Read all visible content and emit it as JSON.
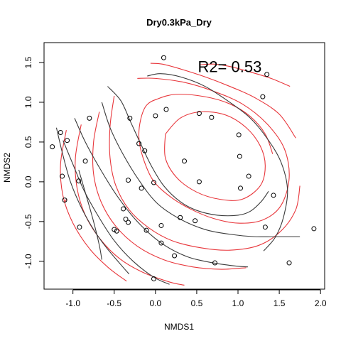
{
  "chart_data": {
    "type": "scatter",
    "title": "Dry0.3kPa_Dry",
    "xlabel": "NMDS1",
    "ylabel": "NMDS2",
    "xlim": [
      -1.35,
      2.05
    ],
    "ylim": [
      -1.35,
      1.75
    ],
    "xticks": [
      "-1.0",
      "-0.5",
      "0.0",
      "0.5",
      "1.0",
      "1.5",
      "2.0"
    ],
    "xtick_values": [
      -1.0,
      -0.5,
      0.0,
      0.5,
      1.0,
      1.5,
      2.0
    ],
    "yticks": [
      "-1.0",
      "-0.5",
      "0.0",
      "0.5",
      "1.0",
      "1.5"
    ],
    "ytick_values": [
      -1.0,
      -0.5,
      0.0,
      0.5,
      1.0,
      1.5
    ],
    "annotation": "R2= 0.53",
    "annotation_pos": [
      0.9,
      1.45
    ],
    "points": [
      [
        -1.25,
        0.44
      ],
      [
        -1.15,
        0.62
      ],
      [
        -1.13,
        0.07
      ],
      [
        -1.07,
        0.52
      ],
      [
        -1.1,
        -0.23
      ],
      [
        -0.93,
        0.01
      ],
      [
        -0.92,
        -0.57
      ],
      [
        -0.85,
        0.26
      ],
      [
        -0.8,
        0.8
      ],
      [
        -0.5,
        -0.6
      ],
      [
        -0.47,
        -0.62
      ],
      [
        -0.39,
        -0.34
      ],
      [
        -0.36,
        -0.47
      ],
      [
        -0.33,
        -0.51
      ],
      [
        -0.33,
        0.02
      ],
      [
        -0.31,
        0.8
      ],
      [
        -0.2,
        0.48
      ],
      [
        -0.17,
        -0.08
      ],
      [
        -0.13,
        0.39
      ],
      [
        -0.11,
        -0.61
      ],
      [
        -0.02,
        -0.01
      ],
      [
        -0.02,
        -1.22
      ],
      [
        0.0,
        0.83
      ],
      [
        0.07,
        -0.55
      ],
      [
        0.07,
        -0.77
      ],
      [
        0.1,
        1.56
      ],
      [
        0.13,
        0.91
      ],
      [
        0.23,
        -0.93
      ],
      [
        0.3,
        -0.45
      ],
      [
        0.35,
        0.26
      ],
      [
        0.48,
        -0.49
      ],
      [
        0.53,
        0.0
      ],
      [
        0.53,
        0.86
      ],
      [
        0.68,
        0.81
      ],
      [
        0.72,
        -1.02
      ],
      [
        1.01,
        0.59
      ],
      [
        1.02,
        0.32
      ],
      [
        1.03,
        -0.08
      ],
      [
        1.13,
        0.07
      ],
      [
        1.3,
        1.07
      ],
      [
        1.33,
        -0.57
      ],
      [
        1.35,
        1.35
      ],
      [
        1.43,
        -0.17
      ],
      [
        1.62,
        -1.02
      ],
      [
        1.92,
        -0.59
      ]
    ],
    "series": [
      {
        "color": "#e8363b",
        "lines": [
          [
            [
              0.53,
              1.47
            ],
            [
              0.7,
              1.48
            ],
            [
              0.9,
              1.45
            ],
            [
              1.15,
              1.38
            ],
            [
              1.4,
              1.3
            ],
            [
              1.63,
              1.2
            ]
          ],
          [
            [
              -0.06,
              1.49
            ],
            [
              0.08,
              1.48
            ],
            [
              0.3,
              1.42
            ],
            [
              0.6,
              1.32
            ],
            [
              0.9,
              1.2
            ],
            [
              1.2,
              1.06
            ],
            [
              1.5,
              0.85
            ],
            [
              1.7,
              0.55
            ]
          ],
          [
            [
              -0.22,
              1.3
            ],
            [
              0.0,
              1.3
            ],
            [
              0.35,
              1.25
            ],
            [
              0.7,
              1.14
            ],
            [
              1.05,
              0.98
            ],
            [
              1.35,
              0.73
            ],
            [
              1.56,
              0.42
            ],
            [
              1.62,
              0.05
            ],
            [
              1.52,
              -0.3
            ],
            [
              1.3,
              -0.48
            ],
            [
              1.0,
              -0.52
            ],
            [
              0.7,
              -0.46
            ],
            [
              0.42,
              -0.34
            ],
            [
              0.17,
              -0.18
            ],
            [
              -0.03,
              0.02
            ],
            [
              -0.15,
              0.3
            ],
            [
              -0.2,
              0.55
            ],
            [
              -0.18,
              0.78
            ],
            [
              -0.11,
              0.96
            ],
            [
              0.02,
              1.04
            ],
            [
              0.25,
              1.1
            ],
            [
              0.6,
              1.07
            ],
            [
              0.9,
              0.98
            ],
            [
              1.15,
              0.82
            ],
            [
              1.33,
              0.6
            ],
            [
              1.42,
              0.35
            ]
          ],
          [
            [
              0.12,
              0.6
            ],
            [
              0.3,
              0.8
            ],
            [
              0.55,
              0.88
            ],
            [
              0.85,
              0.84
            ],
            [
              1.1,
              0.68
            ],
            [
              1.27,
              0.45
            ],
            [
              1.33,
              0.2
            ],
            [
              1.27,
              -0.05
            ],
            [
              1.05,
              -0.22
            ],
            [
              0.78,
              -0.22
            ],
            [
              0.5,
              -0.13
            ],
            [
              0.26,
              0.05
            ],
            [
              0.12,
              0.3
            ],
            [
              0.12,
              0.6
            ]
          ],
          [
            [
              -0.5,
              1.08
            ],
            [
              -0.55,
              0.7
            ],
            [
              -0.55,
              0.3
            ],
            [
              -0.48,
              -0.05
            ],
            [
              -0.32,
              -0.35
            ],
            [
              -0.08,
              -0.58
            ],
            [
              0.2,
              -0.74
            ],
            [
              0.55,
              -0.83
            ],
            [
              0.9,
              -0.86
            ],
            [
              1.25,
              -0.8
            ],
            [
              1.52,
              -0.62
            ],
            [
              1.7,
              -0.35
            ],
            [
              1.75,
              -0.05
            ]
          ],
          [
            [
              -0.68,
              0.88
            ],
            [
              -0.75,
              0.5
            ],
            [
              -0.75,
              0.1
            ],
            [
              -0.66,
              -0.25
            ],
            [
              -0.48,
              -0.56
            ],
            [
              -0.22,
              -0.81
            ],
            [
              0.1,
              -0.98
            ],
            [
              0.45,
              -1.07
            ],
            [
              0.8,
              -1.1
            ],
            [
              1.1,
              -1.08
            ]
          ],
          [
            [
              -0.9,
              0.72
            ],
            [
              -0.97,
              0.3
            ],
            [
              -0.95,
              -0.08
            ],
            [
              -0.85,
              -0.42
            ],
            [
              -0.67,
              -0.72
            ],
            [
              -0.43,
              -0.97
            ],
            [
              -0.15,
              -1.14
            ],
            [
              0.17,
              -1.26
            ],
            [
              0.35,
              -1.3
            ]
          ],
          [
            [
              -1.08,
              0.65
            ],
            [
              -1.15,
              0.22
            ],
            [
              -1.12,
              -0.18
            ],
            [
              -1.0,
              -0.52
            ],
            [
              -0.8,
              -0.84
            ],
            [
              -0.57,
              -1.08
            ],
            [
              -0.35,
              -1.25
            ]
          ],
          [
            [
              -1.08,
              -0.22
            ],
            [
              -1.1,
              -0.26
            ]
          ]
        ]
      },
      {
        "color": "#3a3a3a",
        "lines": [
          [
            [
              -0.1,
              1.33
            ],
            [
              0.06,
              1.36
            ],
            [
              0.3,
              1.32
            ],
            [
              0.6,
              1.2
            ],
            [
              0.9,
              1.0
            ],
            [
              1.15,
              0.8
            ],
            [
              1.35,
              0.55
            ],
            [
              1.52,
              0.25
            ],
            [
              1.6,
              -0.1
            ],
            [
              1.55,
              -0.45
            ],
            [
              1.45,
              -0.7
            ],
            [
              1.31,
              -0.87
            ]
          ],
          [
            [
              -0.58,
              1.2
            ],
            [
              -0.42,
              1.02
            ],
            [
              -0.3,
              0.75
            ],
            [
              -0.18,
              0.48
            ],
            [
              -0.05,
              0.2
            ],
            [
              0.1,
              -0.05
            ],
            [
              0.3,
              -0.25
            ],
            [
              0.5,
              -0.36
            ],
            [
              0.75,
              -0.42
            ],
            [
              1.0,
              -0.42
            ],
            [
              1.15,
              -0.37
            ],
            [
              1.28,
              -0.25
            ],
            [
              1.37,
              -0.12
            ]
          ],
          [
            [
              -0.65,
              1.0
            ],
            [
              -0.55,
              0.68
            ],
            [
              -0.4,
              0.36
            ],
            [
              -0.2,
              0.02
            ],
            [
              0.02,
              -0.27
            ],
            [
              0.3,
              -0.47
            ],
            [
              0.6,
              -0.6
            ],
            [
              0.9,
              -0.66
            ],
            [
              1.2,
              -0.69
            ],
            [
              1.5,
              -0.69
            ],
            [
              1.75,
              -0.69
            ]
          ],
          [
            [
              -0.98,
              0.8
            ],
            [
              -0.85,
              0.5
            ],
            [
              -0.68,
              0.18
            ],
            [
              -0.47,
              -0.17
            ],
            [
              -0.22,
              -0.5
            ],
            [
              0.07,
              -0.77
            ],
            [
              0.38,
              -0.94
            ],
            [
              0.7,
              -1.02
            ],
            [
              0.98,
              -1.06
            ],
            [
              1.12,
              -1.07
            ]
          ],
          [
            [
              -1.12,
              0.52
            ],
            [
              -1.0,
              0.22
            ],
            [
              -0.87,
              -0.1
            ],
            [
              -0.7,
              -0.42
            ],
            [
              -0.5,
              -0.74
            ],
            [
              -0.27,
              -1.0
            ],
            [
              -0.02,
              -1.2
            ],
            [
              0.17,
              -1.29
            ]
          ],
          [
            [
              -1.2,
              0.68
            ],
            [
              -1.12,
              0.33
            ],
            [
              -1.03,
              0.0
            ],
            [
              -0.9,
              -0.32
            ],
            [
              -0.75,
              -0.6
            ],
            [
              -0.6,
              -0.82
            ],
            [
              -0.43,
              -1.03
            ],
            [
              -0.32,
              -1.16
            ]
          ],
          [
            [
              -0.93,
              0.15
            ],
            [
              -0.84,
              -0.17
            ],
            [
              -0.75,
              -0.5
            ],
            [
              -0.68,
              -0.8
            ],
            [
              -0.65,
              -0.98
            ]
          ]
        ]
      }
    ]
  }
}
